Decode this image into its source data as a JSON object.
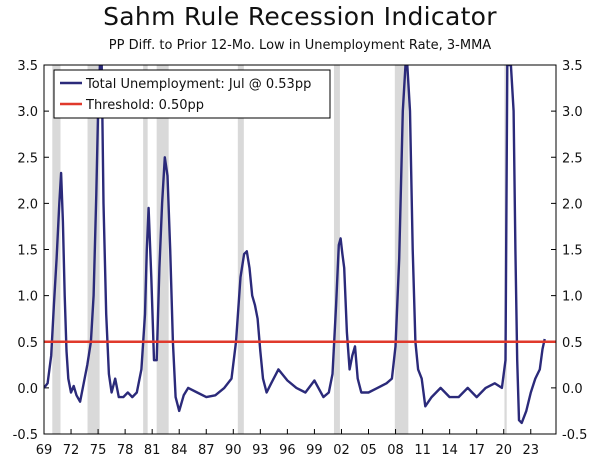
{
  "chart_data": {
    "type": "line",
    "title": "Sahm Rule Recession Indicator",
    "subtitle": "PP Diff. to Prior 12-Mo. Low in Unemployment Rate, 3-MMA",
    "xlabel": "",
    "ylabel": "",
    "ylim": [
      -0.5,
      3.5
    ],
    "xlim": [
      1969,
      2025.8
    ],
    "y_ticks": [
      "3.5",
      "3.0",
      "2.5",
      "2.0",
      "1.5",
      "1.0",
      "0.5",
      "0.0",
      "-0.5"
    ],
    "x_ticks": [
      "69",
      "72",
      "75",
      "78",
      "81",
      "84",
      "87",
      "90",
      "93",
      "96",
      "99",
      "02",
      "05",
      "08",
      "11",
      "14",
      "17",
      "20",
      "23"
    ],
    "recessions": [
      [
        1969.92,
        1970.83
      ],
      [
        1973.83,
        1975.17
      ],
      [
        1980.0,
        1980.5
      ],
      [
        1981.5,
        1982.83
      ],
      [
        1990.5,
        1991.17
      ],
      [
        2001.17,
        2001.83
      ],
      [
        2007.92,
        2009.42
      ],
      [
        2020.08,
        2020.33
      ]
    ],
    "legend": {
      "placement": "top-left",
      "series_label": "Total Unemployment: Jul @ 0.53pp",
      "threshold_label": "Threshold: 0.50pp"
    },
    "threshold": {
      "name": "Threshold: 0.50pp",
      "value": 0.5,
      "color": "#e0392b"
    },
    "series": [
      {
        "name": "Total Unemployment: Jul @ 0.53pp",
        "color": "#2b2a7a",
        "x": [
          1969.0,
          1969.4,
          1969.8,
          1970.1,
          1970.4,
          1970.7,
          1970.9,
          1971.1,
          1971.3,
          1971.5,
          1971.7,
          1972.0,
          1972.3,
          1972.6,
          1973.0,
          1973.4,
          1973.8,
          1974.2,
          1974.5,
          1974.8,
          1975.0,
          1975.2,
          1975.4,
          1975.6,
          1975.9,
          1976.2,
          1976.5,
          1976.9,
          1977.3,
          1977.8,
          1978.3,
          1978.8,
          1979.3,
          1979.8,
          1980.2,
          1980.4,
          1980.6,
          1980.9,
          1981.2,
          1981.5,
          1981.8,
          1982.1,
          1982.4,
          1982.7,
          1983.0,
          1983.3,
          1983.6,
          1984.0,
          1984.5,
          1985.0,
          1986.0,
          1987.0,
          1988.0,
          1989.0,
          1989.8,
          1990.3,
          1990.8,
          1991.2,
          1991.5,
          1991.8,
          1992.1,
          1992.4,
          1992.7,
          1993.0,
          1993.3,
          1993.7,
          1994.2,
          1995.0,
          1996.0,
          1997.0,
          1998.0,
          1999.0,
          2000.0,
          2000.6,
          2001.0,
          2001.4,
          2001.7,
          2001.9,
          2002.1,
          2002.3,
          2002.6,
          2002.9,
          2003.2,
          2003.5,
          2003.8,
          2004.2,
          2005.0,
          2006.0,
          2007.0,
          2007.6,
          2008.0,
          2008.4,
          2008.8,
          2009.1,
          2009.3,
          2009.6,
          2009.9,
          2010.2,
          2010.5,
          2010.9,
          2011.3,
          2012.0,
          2013.0,
          2014.0,
          2015.0,
          2016.0,
          2017.0,
          2018.0,
          2019.0,
          2019.8,
          2020.2,
          2020.4,
          2020.8,
          2021.1,
          2021.3,
          2021.5,
          2021.7,
          2022.0,
          2022.5,
          2023.0,
          2023.5,
          2024.0,
          2024.3,
          2024.55
        ],
        "values": [
          0.0,
          0.05,
          0.35,
          0.9,
          1.4,
          2.0,
          2.33,
          1.8,
          1.0,
          0.4,
          0.1,
          -0.05,
          0.02,
          -0.08,
          -0.15,
          0.05,
          0.25,
          0.5,
          1.0,
          2.1,
          3.0,
          3.5,
          3.5,
          2.0,
          0.8,
          0.15,
          -0.05,
          0.1,
          -0.1,
          -0.1,
          -0.05,
          -0.1,
          -0.05,
          0.2,
          0.8,
          1.5,
          1.95,
          1.2,
          0.3,
          0.3,
          1.3,
          2.0,
          2.5,
          2.3,
          1.5,
          0.5,
          -0.1,
          -0.25,
          -0.08,
          0.0,
          -0.05,
          -0.1,
          -0.08,
          0.0,
          0.1,
          0.5,
          1.2,
          1.45,
          1.48,
          1.3,
          1.0,
          0.9,
          0.75,
          0.4,
          0.1,
          -0.05,
          0.05,
          0.2,
          0.08,
          0.0,
          -0.05,
          0.08,
          -0.1,
          -0.05,
          0.15,
          0.9,
          1.55,
          1.62,
          1.45,
          1.3,
          0.6,
          0.2,
          0.35,
          0.45,
          0.1,
          -0.05,
          -0.05,
          0.0,
          0.05,
          0.1,
          0.45,
          1.4,
          3.0,
          3.5,
          3.5,
          3.0,
          1.5,
          0.5,
          0.2,
          0.1,
          -0.2,
          -0.1,
          0.0,
          -0.1,
          -0.1,
          0.0,
          -0.1,
          0.0,
          0.05,
          0.0,
          0.3,
          3.5,
          3.5,
          3.0,
          1.5,
          0.3,
          -0.35,
          -0.38,
          -0.25,
          -0.05,
          0.1,
          0.2,
          0.42,
          0.53
        ]
      }
    ]
  }
}
